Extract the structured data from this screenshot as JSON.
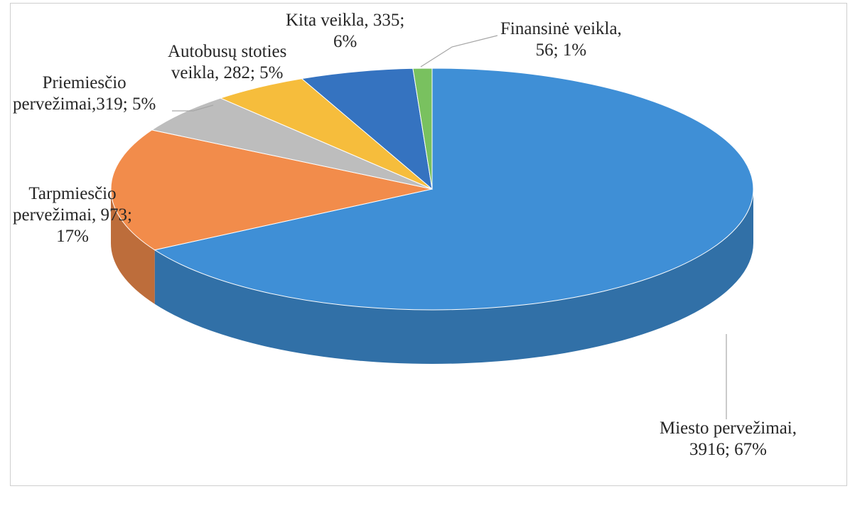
{
  "chart_data": {
    "type": "pie",
    "three_d": true,
    "title": "",
    "legend": "none",
    "slices": [
      {
        "name": "Miesto pervežimai",
        "value": 3916,
        "percent": 67,
        "color": "#3f8fd6",
        "label_lines": [
          "Miesto pervežimai,",
          "3916; 67%"
        ]
      },
      {
        "name": "Tarpmiesčio pervežimai",
        "value": 973,
        "percent": 17,
        "color": "#f28c4b",
        "label_lines": [
          "Tarpmiesčio",
          "pervežimai, 973;",
          "17%"
        ]
      },
      {
        "name": "Priemiesčio pervežimai",
        "value": 319,
        "percent": 5,
        "color": "#bdbdbd",
        "label_lines": [
          "Priemiesčio",
          "pervežimai,319; 5%"
        ]
      },
      {
        "name": "Autobusų stoties veikla",
        "value": 282,
        "percent": 5,
        "color": "#f6bd3c",
        "label_lines": [
          "Autobusų stoties",
          "veikla, 282; 5%"
        ]
      },
      {
        "name": "Kita veikla",
        "value": 335,
        "percent": 6,
        "color": "#3573c0",
        "label_lines": [
          "Kita veikla, 335;",
          "6%"
        ]
      },
      {
        "name": "Finansinė veikla",
        "value": 56,
        "percent": 1,
        "color": "#79c15f",
        "label_lines": [
          "Finansinė veikla,",
          "56; 1%"
        ]
      }
    ]
  }
}
